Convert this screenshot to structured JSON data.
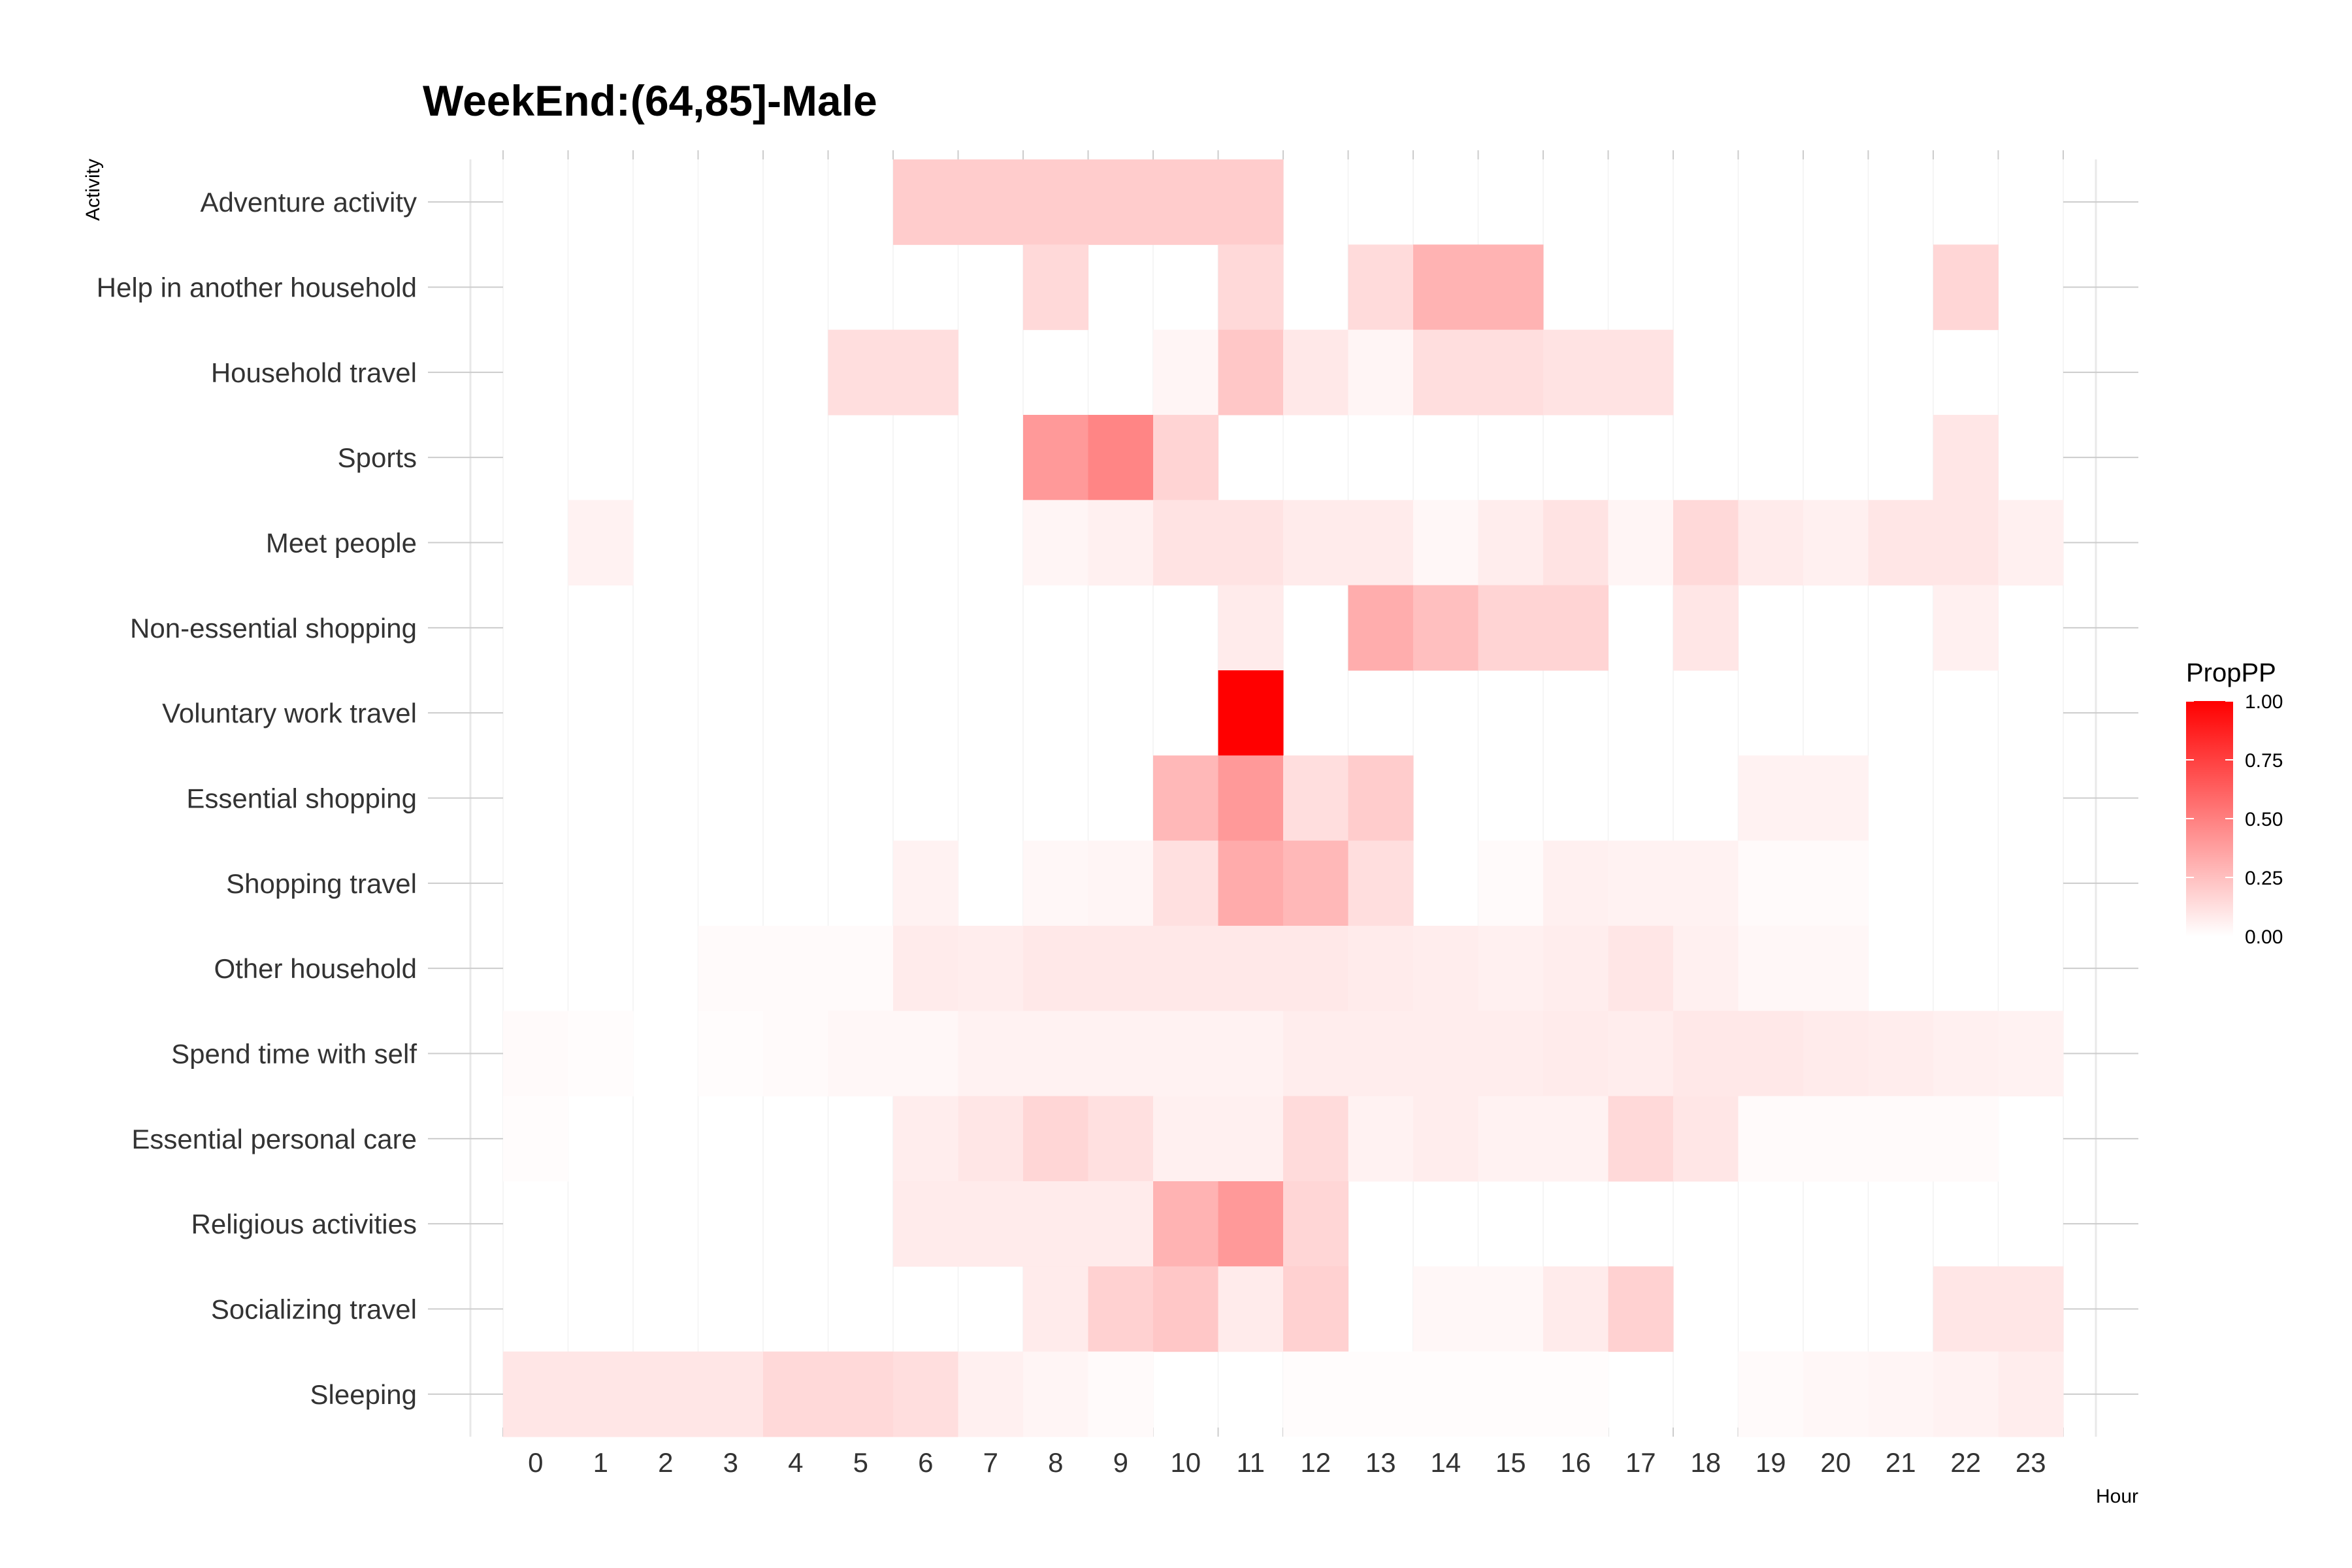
{
  "chart_data": {
    "type": "heatmap",
    "title": "WeekEnd:(64,85]-Male",
    "xlabel": "Hour",
    "ylabel": "Activity",
    "x": [
      0,
      1,
      2,
      3,
      4,
      5,
      6,
      7,
      8,
      9,
      10,
      11,
      12,
      13,
      14,
      15,
      16,
      17,
      18,
      19,
      20,
      21,
      22,
      23
    ],
    "y": [
      "Adventure activity",
      "Help in another household",
      "Household travel",
      "Sports",
      "Meet people",
      "Non-essential shopping",
      "Voluntary work travel",
      "Essential shopping",
      "Shopping travel",
      "Other household",
      "Spend time with self",
      "Essential personal care",
      "Religious activities",
      "Socializing travel",
      "Sleeping"
    ],
    "values": [
      [
        null,
        null,
        null,
        null,
        null,
        null,
        0.2,
        0.2,
        0.2,
        0.2,
        0.2,
        0.2,
        null,
        null,
        null,
        null,
        null,
        null,
        null,
        null,
        null,
        null,
        null,
        null
      ],
      [
        null,
        null,
        null,
        null,
        null,
        null,
        null,
        null,
        0.15,
        null,
        null,
        0.15,
        null,
        0.14,
        0.3,
        0.3,
        null,
        null,
        null,
        null,
        null,
        null,
        0.16,
        null
      ],
      [
        null,
        null,
        null,
        null,
        null,
        0.13,
        0.13,
        null,
        null,
        null,
        0.04,
        0.22,
        0.09,
        0.04,
        0.13,
        0.13,
        0.11,
        0.11,
        null,
        null,
        null,
        null,
        null,
        null
      ],
      [
        null,
        null,
        null,
        null,
        null,
        null,
        null,
        null,
        0.4,
        0.48,
        0.17,
        null,
        null,
        null,
        null,
        null,
        null,
        null,
        null,
        null,
        null,
        null,
        0.1,
        null
      ],
      [
        null,
        0.05,
        null,
        null,
        null,
        null,
        null,
        null,
        0.04,
        0.06,
        0.11,
        0.11,
        0.08,
        0.08,
        0.03,
        0.07,
        0.11,
        0.04,
        0.15,
        0.08,
        0.06,
        0.1,
        0.1,
        0.06
      ],
      [
        null,
        null,
        null,
        null,
        null,
        null,
        null,
        null,
        null,
        null,
        null,
        0.08,
        null,
        0.32,
        0.25,
        0.17,
        0.17,
        null,
        0.1,
        null,
        null,
        null,
        0.06,
        null
      ],
      [
        null,
        null,
        null,
        null,
        null,
        null,
        null,
        null,
        null,
        null,
        null,
        1.0,
        null,
        null,
        null,
        null,
        null,
        null,
        null,
        null,
        null,
        null,
        null,
        null
      ],
      [
        null,
        null,
        null,
        null,
        null,
        null,
        null,
        null,
        null,
        null,
        0.28,
        0.4,
        0.13,
        0.2,
        null,
        null,
        null,
        null,
        null,
        0.05,
        0.05,
        null,
        null,
        null
      ],
      [
        null,
        null,
        null,
        null,
        null,
        null,
        0.05,
        null,
        0.03,
        0.04,
        0.12,
        0.33,
        0.28,
        0.13,
        null,
        0.02,
        0.06,
        0.05,
        0.05,
        0.02,
        0.02,
        null,
        null,
        null
      ],
      [
        null,
        null,
        null,
        0.02,
        0.02,
        0.02,
        0.08,
        0.07,
        0.09,
        0.09,
        0.09,
        0.09,
        0.09,
        0.08,
        0.07,
        0.06,
        0.07,
        0.1,
        0.06,
        0.03,
        0.03,
        null,
        null,
        null
      ],
      [
        0.02,
        0.01,
        null,
        0.01,
        0.02,
        0.03,
        0.03,
        0.05,
        0.05,
        0.05,
        0.05,
        0.05,
        0.07,
        0.07,
        0.07,
        0.07,
        0.08,
        0.07,
        0.09,
        0.09,
        0.08,
        0.07,
        0.06,
        0.05
      ],
      [
        0.01,
        null,
        null,
        null,
        null,
        null,
        0.07,
        0.1,
        0.16,
        0.12,
        0.06,
        0.06,
        0.14,
        0.05,
        0.07,
        0.05,
        0.05,
        0.15,
        0.1,
        0.02,
        0.02,
        0.02,
        0.02,
        null
      ],
      [
        null,
        null,
        null,
        null,
        null,
        null,
        0.08,
        0.08,
        0.08,
        0.08,
        0.3,
        0.4,
        0.16,
        null,
        null,
        null,
        null,
        null,
        null,
        null,
        null,
        null,
        null,
        null
      ],
      [
        null,
        null,
        null,
        null,
        null,
        null,
        null,
        null,
        0.08,
        0.18,
        0.22,
        0.08,
        0.18,
        null,
        0.03,
        0.03,
        0.08,
        0.18,
        null,
        null,
        null,
        null,
        0.1,
        0.1
      ],
      [
        0.1,
        0.1,
        0.1,
        0.1,
        0.15,
        0.15,
        0.13,
        0.06,
        0.04,
        0.02,
        null,
        null,
        0.01,
        0.01,
        0.01,
        0.01,
        0.01,
        null,
        null,
        0.02,
        0.03,
        0.04,
        0.05,
        0.07
      ]
    ],
    "color_scale": {
      "low": "#ffffff",
      "high": "#ff0000",
      "domain": [
        0,
        1
      ]
    },
    "legend": {
      "title": "PropPP",
      "ticks": [
        "1.00",
        "0.75",
        "0.50",
        "0.25",
        "0.00"
      ],
      "tick_values": [
        1,
        0.75,
        0.5,
        0.25,
        0
      ],
      "placement": "right"
    },
    "grid": true
  }
}
